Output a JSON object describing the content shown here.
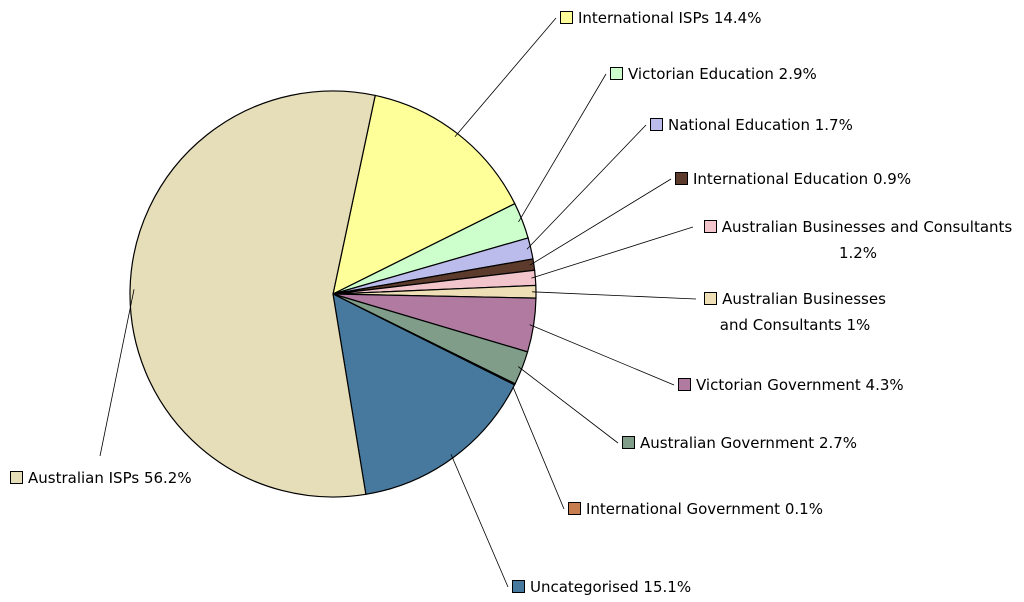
{
  "chart_data": {
    "type": "pie",
    "categories": [
      "International ISPs",
      "Victorian Education",
      "National Education",
      "International Education",
      "Australian Businesses and Consultants",
      "Australian Businesses and Consultants",
      "Victorian Government",
      "Australian Government",
      "International Government",
      "Uncategorised",
      "Australian ISPs"
    ],
    "values": [
      14.4,
      2.9,
      1.7,
      0.9,
      1.2,
      1,
      4.3,
      2.7,
      0.1,
      15.1,
      56.2
    ],
    "value_labels": [
      "14.4%",
      "2.9%",
      "1.7%",
      "0.9%",
      "1.2%",
      "1%",
      "4.3%",
      "2.7%",
      "0.1%",
      "15.1%",
      "56.2%"
    ],
    "colors": [
      "#ffff99",
      "#ccffcc",
      "#bcbcec",
      "#5c3a2c",
      "#f2c4cc",
      "#eedfb6",
      "#b07aa1",
      "#7f9d88",
      "#c87d4e",
      "#47799e",
      "#e6ddb9"
    ]
  }
}
